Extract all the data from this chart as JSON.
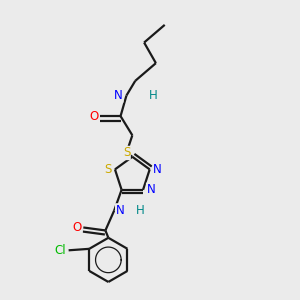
{
  "background_color": "#ebebeb",
  "bond_color": "#1a1a1a",
  "atom_colors": {
    "N": "#0000ff",
    "O": "#ff0000",
    "S": "#ccaa00",
    "Cl": "#00bb00",
    "H": "#008888"
  },
  "figsize": [
    3.0,
    3.0
  ],
  "dpi": 100,
  "lw": 1.6,
  "fontsize": 8.5
}
